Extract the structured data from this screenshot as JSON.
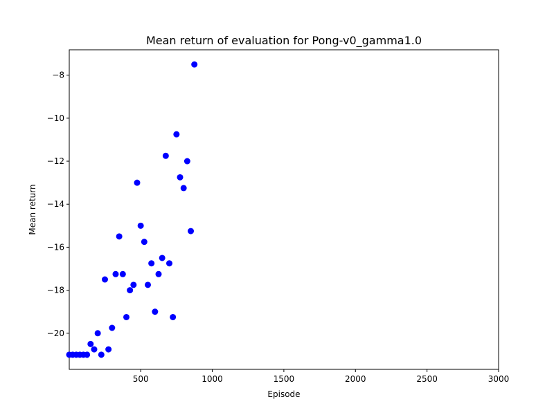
{
  "chart_data": {
    "type": "scatter",
    "title": "Mean return of evaluation for Pong-v0_gamma1.0",
    "xlabel": "Episode",
    "ylabel": "Mean return",
    "xlim": [
      1,
      3000
    ],
    "ylim": [
      -21.68,
      -6.82
    ],
    "xticks": [
      500,
      1000,
      1500,
      2000,
      2500,
      3000
    ],
    "xtick_labels": [
      "500",
      "1000",
      "1500",
      "2000",
      "2500",
      "3000"
    ],
    "yticks": [
      -20,
      -18,
      -16,
      -14,
      -12,
      -10,
      -8
    ],
    "ytick_labels": [
      "−20",
      "−18",
      "−16",
      "−14",
      "−12",
      "−10",
      "−8"
    ],
    "grid": false,
    "marker_color": "#0000ff",
    "series": [
      {
        "x": [
          1,
          25,
          50,
          75,
          100,
          125,
          150,
          175,
          200,
          225,
          250,
          275,
          300,
          325,
          350,
          375,
          400,
          425,
          450,
          475,
          500,
          525,
          550,
          575,
          600,
          625,
          650,
          675,
          700,
          725,
          750,
          775,
          800,
          825,
          850,
          875
        ],
        "y": [
          -21,
          -21,
          -21,
          -21,
          -21,
          -21,
          -20.5,
          -20.75,
          -20,
          -21,
          -17.5,
          -20.75,
          -19.75,
          -17.25,
          -15.5,
          -17.25,
          -19.25,
          -18,
          -17.75,
          -13,
          -15,
          -15.75,
          -17.75,
          -16.75,
          -19,
          -17.25,
          -16.5,
          -11.75,
          -16.75,
          -19.25,
          -10.75,
          -12.75,
          -13.25,
          -12,
          -15.25,
          -7.5
        ]
      }
    ]
  }
}
